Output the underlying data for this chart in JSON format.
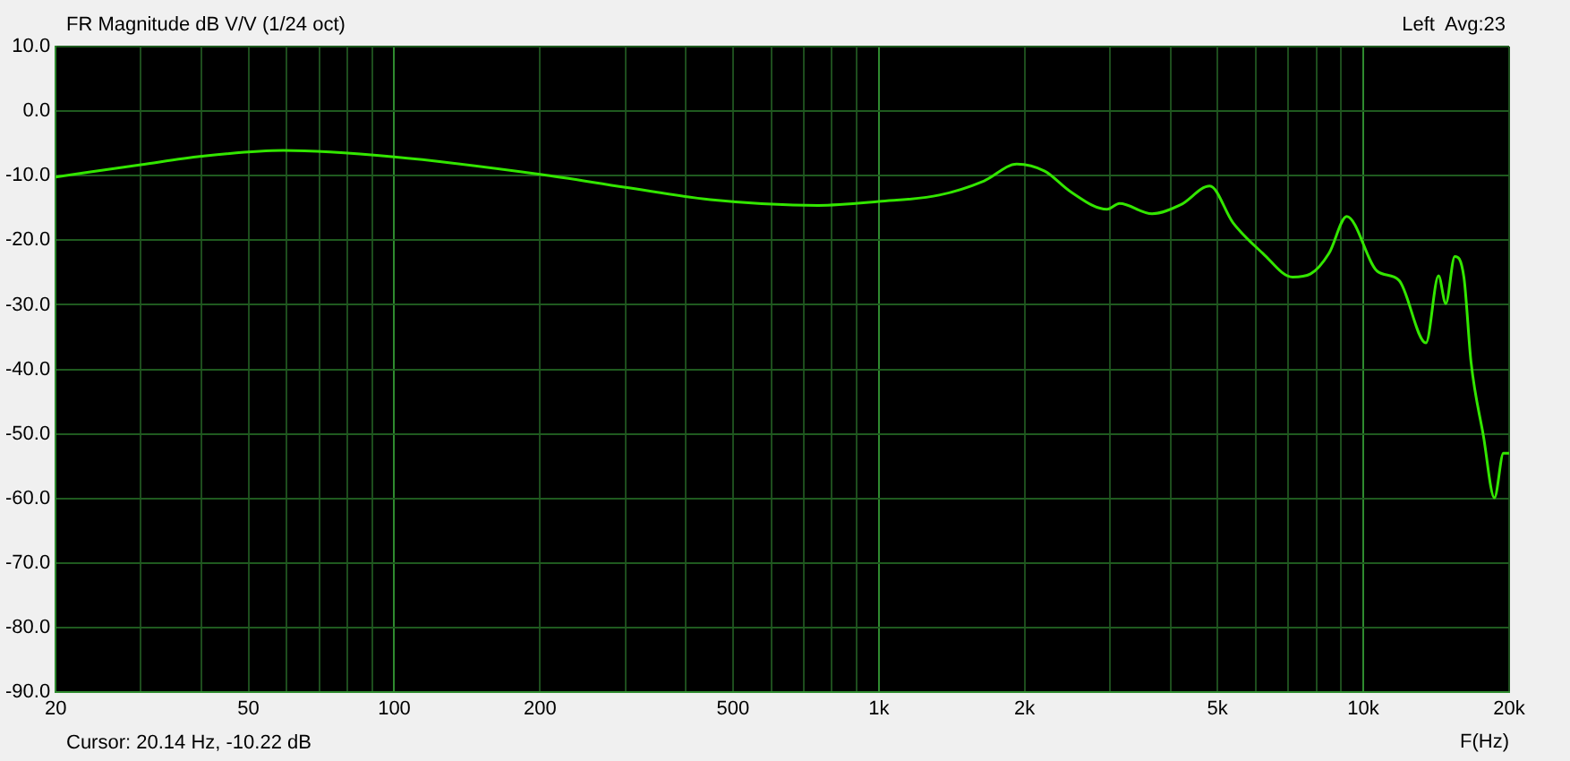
{
  "chart_data": {
    "type": "line",
    "title": "FR Magnitude dB V/V (1/24 oct)",
    "xlabel": "F(Hz)",
    "annotations": [
      "Left  Avg:23",
      "Cursor: 20.14 Hz, -10.22 dB"
    ],
    "log": "x",
    "grid": true,
    "legend": false,
    "marker": "none",
    "line_style": "solid",
    "xlim": [
      20,
      20000
    ],
    "ylim": [
      -90,
      10
    ],
    "xticks": [
      20,
      {
        "value": 30,
        "label": null
      },
      {
        "value": 40,
        "label": null
      },
      50,
      {
        "value": 60,
        "label": null
      },
      {
        "value": 70,
        "label": null
      },
      {
        "value": 80,
        "label": null
      },
      {
        "value": 90,
        "label": null
      },
      100,
      200,
      {
        "value": 300,
        "label": null
      },
      {
        "value": 400,
        "label": null
      },
      500,
      {
        "value": 600,
        "label": null
      },
      {
        "value": 700,
        "label": null
      },
      {
        "value": 800,
        "label": null
      },
      {
        "value": 900,
        "label": null
      },
      {
        "value": 1000,
        "label": "1k"
      },
      {
        "value": 2000,
        "label": "2k"
      },
      {
        "value": 3000,
        "label": null
      },
      {
        "value": 4000,
        "label": null
      },
      {
        "value": 5000,
        "label": "5k"
      },
      {
        "value": 6000,
        "label": null
      },
      {
        "value": 7000,
        "label": null
      },
      {
        "value": 8000,
        "label": null
      },
      {
        "value": 9000,
        "label": null
      },
      {
        "value": 10000,
        "label": "10k"
      },
      {
        "value": 20000,
        "label": "20k"
      }
    ],
    "yticks": [
      {
        "value": 10,
        "label": "10.0"
      },
      {
        "value": 0,
        "label": "0.0"
      },
      {
        "value": -10,
        "label": "-10.0"
      },
      {
        "value": -20,
        "label": "-20.0"
      },
      {
        "value": -30,
        "label": "-30.0"
      },
      {
        "value": -40,
        "label": "-40.0"
      },
      {
        "value": -50,
        "label": "-50.0"
      },
      {
        "value": -60,
        "label": "-60.0"
      },
      {
        "value": -70,
        "label": "-70.0"
      },
      {
        "value": -80,
        "label": "-80.0"
      },
      {
        "value": -90,
        "label": "-90.0"
      }
    ],
    "x": [
      20,
      30,
      40,
      59,
      100,
      200,
      300,
      449,
      750,
      1000,
      1333,
      1650,
      1926,
      2200,
      2490,
      2958,
      3140,
      3664,
      4200,
      4821,
      5385,
      6200,
      7146,
      7786,
      8500,
      9244,
      10690,
      11850,
      13470,
      14300,
      14800,
      15450,
      16130,
      16690,
      17700,
      18650,
      19470,
      20000
    ],
    "series": [
      {
        "color": "#33e600",
        "values": [
          -10.2,
          -8.3,
          -7.0,
          -6.1,
          -7.1,
          -9.8,
          -11.8,
          -13.7,
          -14.6,
          -14.0,
          -13.0,
          -10.8,
          -8.2,
          -9.3,
          -12.5,
          -15.2,
          -14.3,
          -15.9,
          -14.5,
          -11.6,
          -17.3,
          -22.0,
          -25.7,
          -25.2,
          -22.0,
          -16.3,
          -24.8,
          -26.2,
          -35.9,
          -25.5,
          -29.8,
          -22.5,
          -25.7,
          -38.9,
          -50.3,
          -59.9,
          -53.0,
          -53.0
        ]
      }
    ]
  }
}
